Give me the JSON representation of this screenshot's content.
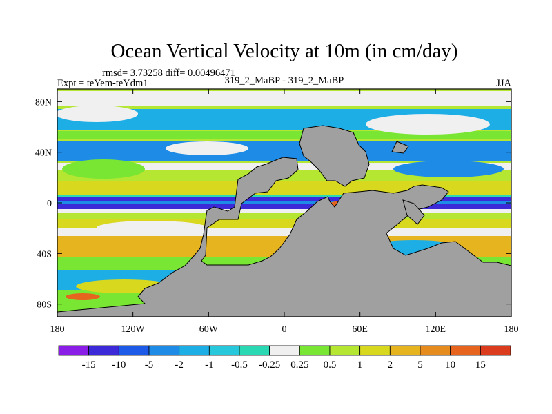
{
  "chart_data": {
    "type": "heatmap",
    "title": "Ocean Vertical Velocity at 10m (in cm/day)",
    "stats_text": "rmsd= 3.73258 diff= 0.00496471",
    "experiment_text": "Expt = teYem-teYdm1",
    "case_text": "319_2_MaBP - 319_2_MaBP",
    "season": "JJA",
    "projection": "cylindrical equidistant",
    "xlim": [
      -180,
      180
    ],
    "ylim": [
      -90,
      90
    ],
    "x_ticks": [
      {
        "value": -180,
        "label": "180"
      },
      {
        "value": -120,
        "label": "120W"
      },
      {
        "value": -60,
        "label": "60W"
      },
      {
        "value": 0,
        "label": "0"
      },
      {
        "value": 60,
        "label": "60E"
      },
      {
        "value": 120,
        "label": "120E"
      },
      {
        "value": 180,
        "label": "180"
      }
    ],
    "y_ticks": [
      {
        "value": 80,
        "label": "80N"
      },
      {
        "value": 40,
        "label": "40N"
      },
      {
        "value": 0,
        "label": "0"
      },
      {
        "value": -40,
        "label": "40S"
      },
      {
        "value": -80,
        "label": "80S"
      }
    ],
    "colorbar": {
      "colors": [
        "#8a1ee6",
        "#3c2ad8",
        "#1e5ae8",
        "#1e8ce6",
        "#1eaee6",
        "#28c8dc",
        "#2ad8b4",
        "#f0f0f0",
        "#78e632",
        "#b4e632",
        "#d8d81e",
        "#e6b41e",
        "#e68c1e",
        "#e6641e",
        "#dc3c1e"
      ],
      "labels": [
        "-15",
        "-10",
        "-5",
        "-2",
        "-1",
        "-0.5",
        "-0.25",
        "0.25",
        "0.5",
        "1",
        "2",
        "5",
        "10",
        "15"
      ]
    },
    "land_color": "#a0a0a0"
  }
}
